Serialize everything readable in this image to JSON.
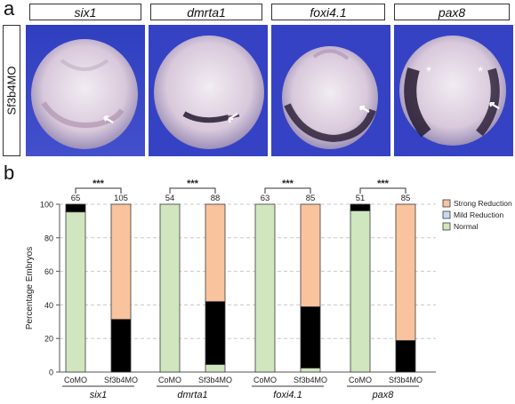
{
  "panel_a": {
    "letter": "a",
    "row_label": "Sf3b4MO",
    "genes": [
      "six1",
      "dmrta1",
      "foxi4.1",
      "pax8"
    ],
    "star_marker": "*"
  },
  "panel_b": {
    "letter": "b"
  },
  "colors": {
    "strong_reduction": "#f8c39d",
    "mild_reduction": "#c5dcee",
    "normal": "#cfe6bf",
    "photo_background": "#3a45c4",
    "embryo": "#e6dbe8",
    "stain": "#241a30"
  },
  "chart_data": {
    "type": "bar",
    "stacked": true,
    "ylabel": "Percentage Embryos",
    "ylim": [
      0,
      100
    ],
    "yticks": [
      0,
      20,
      40,
      60,
      80,
      100
    ],
    "grid": "horizontal-dashed",
    "legend_position": "right",
    "legend": [
      "Strong Reduction",
      "Mild Reduction",
      "Normal"
    ],
    "significance": "***",
    "groups": [
      {
        "gene": "six1",
        "bars": [
          {
            "label": "CoMO",
            "n": "65",
            "normal": 95.4,
            "mild": 4.6,
            "strong": 0
          },
          {
            "label": "Sf3b4MO",
            "n": "105",
            "normal": 0,
            "mild": 31.4,
            "strong": 68.6
          }
        ]
      },
      {
        "gene": "dmrta1",
        "bars": [
          {
            "label": "CoMO",
            "n": "54",
            "normal": 100,
            "mild": 0,
            "strong": 0
          },
          {
            "label": "Sf3b4MO",
            "n": "88",
            "normal": 4.5,
            "mild": 37.5,
            "strong": 58.0
          }
        ]
      },
      {
        "gene": "foxi4.1",
        "bars": [
          {
            "label": "CoMO",
            "n": "63",
            "normal": 100,
            "mild": 0,
            "strong": 0
          },
          {
            "label": "Sf3b4MO",
            "n": "85",
            "normal": 2.4,
            "mild": 36.5,
            "strong": 61.1
          }
        ]
      },
      {
        "gene": "pax8",
        "bars": [
          {
            "label": "CoMO",
            "n": "51",
            "normal": 96.1,
            "mild": 3.9,
            "strong": 0
          },
          {
            "label": "Sf3b4MO",
            "n": "85",
            "normal": 0,
            "mild": 18.8,
            "strong": 81.2
          }
        ]
      }
    ]
  }
}
